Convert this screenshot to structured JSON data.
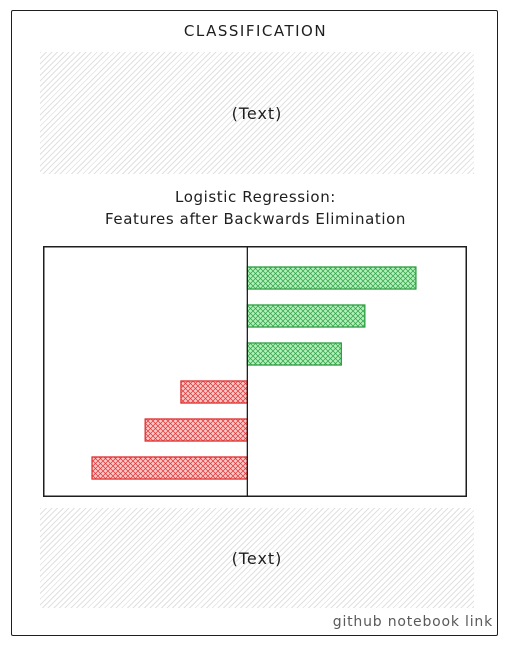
{
  "heading": "CLASSIFICATION",
  "panels": {
    "top_text": "(Text)",
    "bottom_text": "(Text)"
  },
  "chart_title_line1": "Logistic Regression:",
  "chart_title_line2": "Features after Backwards Elimination",
  "footer_link": "github notebook link",
  "colors": {
    "positive_fill": "#b2f2bb",
    "positive_stroke": "#2f9e44",
    "negative_fill": "#ffc9c9",
    "negative_stroke": "#e03131"
  },
  "chart_data": {
    "type": "bar",
    "orientation": "horizontal",
    "title": "Logistic Regression: Features after Backwards Elimination",
    "xlabel": "",
    "ylabel": "",
    "categories": [
      "",
      "",
      "",
      "",
      "",
      ""
    ],
    "values": [
      1.65,
      1.15,
      0.92,
      -0.65,
      -1.0,
      -1.52
    ],
    "xlim": [
      -2.0,
      2.15
    ],
    "grid": false
  }
}
